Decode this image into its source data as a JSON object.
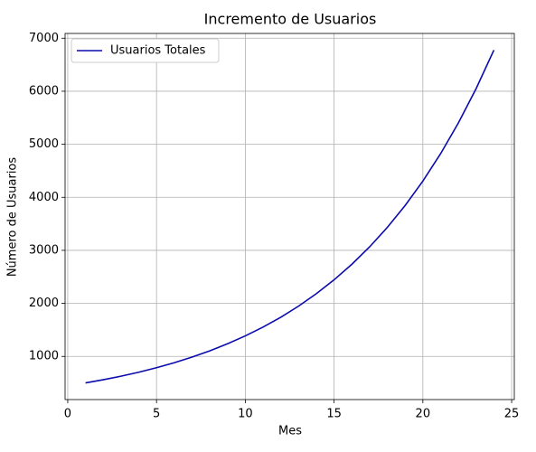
{
  "chart_data": {
    "type": "line",
    "title": "Incremento de Usuarios",
    "x_label": "Mes",
    "y_label": "Número de Usuarios",
    "x": [
      1,
      2,
      3,
      4,
      5,
      6,
      7,
      8,
      9,
      10,
      11,
      12,
      13,
      14,
      15,
      16,
      17,
      18,
      19,
      20,
      21,
      22,
      23,
      24
    ],
    "series": [
      {
        "name": "Usuarios Totales",
        "color": "#0a0aad",
        "values": [
          500,
          560,
          627,
          702,
          787,
          881,
          987,
          1105,
          1238,
          1387,
          1553,
          1739,
          1948,
          2182,
          2444,
          2737,
          3065,
          3433,
          3845,
          4306,
          4823,
          5402,
          6050,
          6776
        ]
      }
    ],
    "xlim": [
      -0.15,
      25.15
    ],
    "ylim": [
      186,
      7090
    ],
    "xticks": [
      0,
      5,
      10,
      15,
      20,
      25
    ],
    "yticks": [
      1000,
      2000,
      3000,
      4000,
      5000,
      6000,
      7000
    ],
    "grid": true,
    "legend": "upper left"
  }
}
